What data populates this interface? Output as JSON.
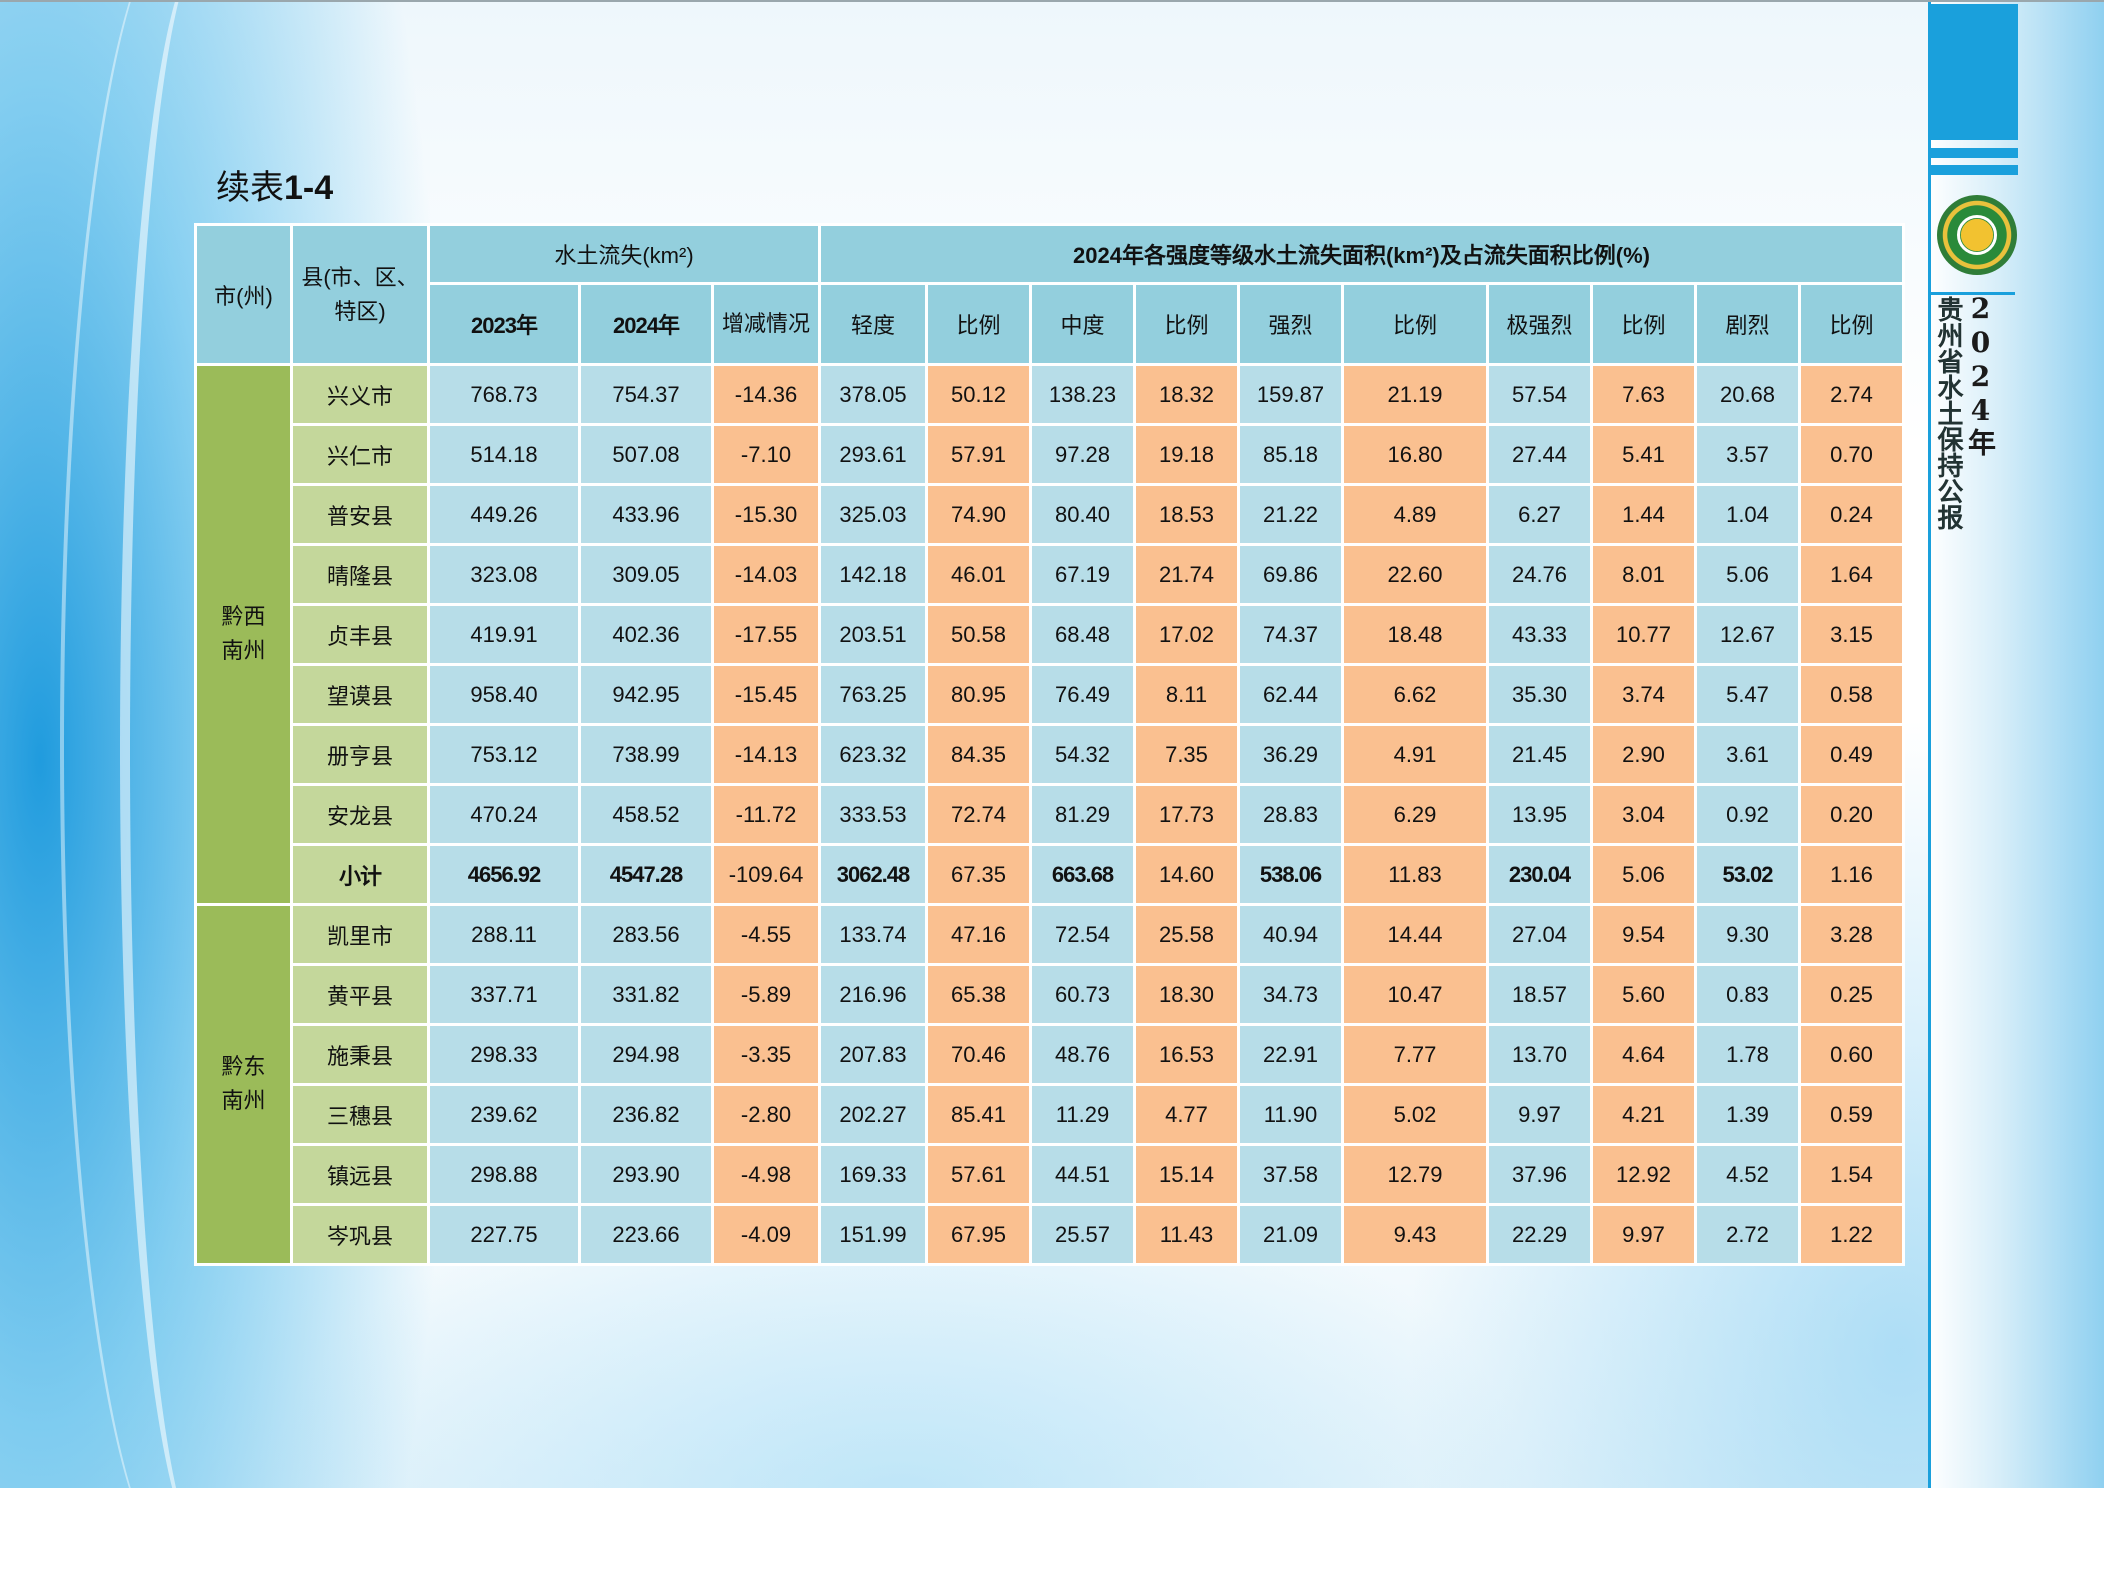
{
  "title": {
    "prefix": "续表",
    "number": "1-4"
  },
  "sidebar": {
    "year": "2024年",
    "subtitle": "贵州省水土保持公报"
  },
  "header": {
    "city": "市(州)",
    "county": "县(市、区、特区)",
    "soil_loss_group": "水土流失(km²)",
    "intensity_group": "2024年各强度等级水土流失面积(km²)及占流失面积比例(%)",
    "y2023": "2023年",
    "y2024": "2024年",
    "change": "增减情况",
    "light": "轻度",
    "moderate": "中度",
    "intense": "强烈",
    "very_intense": "极强烈",
    "severe": "剧烈",
    "ratio": "比例"
  },
  "groups": [
    {
      "city": "黔西南州",
      "rows": [
        {
          "name": "兴义市",
          "v": [
            "768.73",
            "754.37",
            "-14.36",
            "378.05",
            "50.12",
            "138.23",
            "18.32",
            "159.87",
            "21.19",
            "57.54",
            "7.63",
            "20.68",
            "2.74"
          ]
        },
        {
          "name": "兴仁市",
          "v": [
            "514.18",
            "507.08",
            "-7.10",
            "293.61",
            "57.91",
            "97.28",
            "19.18",
            "85.18",
            "16.80",
            "27.44",
            "5.41",
            "3.57",
            "0.70"
          ]
        },
        {
          "name": "普安县",
          "v": [
            "449.26",
            "433.96",
            "-15.30",
            "325.03",
            "74.90",
            "80.40",
            "18.53",
            "21.22",
            "4.89",
            "6.27",
            "1.44",
            "1.04",
            "0.24"
          ]
        },
        {
          "name": "晴隆县",
          "v": [
            "323.08",
            "309.05",
            "-14.03",
            "142.18",
            "46.01",
            "67.19",
            "21.74",
            "69.86",
            "22.60",
            "24.76",
            "8.01",
            "5.06",
            "1.64"
          ]
        },
        {
          "name": "贞丰县",
          "v": [
            "419.91",
            "402.36",
            "-17.55",
            "203.51",
            "50.58",
            "68.48",
            "17.02",
            "74.37",
            "18.48",
            "43.33",
            "10.77",
            "12.67",
            "3.15"
          ]
        },
        {
          "name": "望谟县",
          "v": [
            "958.40",
            "942.95",
            "-15.45",
            "763.25",
            "80.95",
            "76.49",
            "8.11",
            "62.44",
            "6.62",
            "35.30",
            "3.74",
            "5.47",
            "0.58"
          ]
        },
        {
          "name": "册亨县",
          "v": [
            "753.12",
            "738.99",
            "-14.13",
            "623.32",
            "84.35",
            "54.32",
            "7.35",
            "36.29",
            "4.91",
            "21.45",
            "2.90",
            "3.61",
            "0.49"
          ]
        },
        {
          "name": "安龙县",
          "v": [
            "470.24",
            "458.52",
            "-11.72",
            "333.53",
            "72.74",
            "81.29",
            "17.73",
            "28.83",
            "6.29",
            "13.95",
            "3.04",
            "0.92",
            "0.20"
          ]
        },
        {
          "name": "小计",
          "subtotal": true,
          "v": [
            "4656.92",
            "4547.28",
            "-109.64",
            "3062.48",
            "67.35",
            "663.68",
            "14.60",
            "538.06",
            "11.83",
            "230.04",
            "5.06",
            "53.02",
            "1.16"
          ]
        }
      ]
    },
    {
      "city": "黔东南州",
      "rows": [
        {
          "name": "凯里市",
          "v": [
            "288.11",
            "283.56",
            "-4.55",
            "133.74",
            "47.16",
            "72.54",
            "25.58",
            "40.94",
            "14.44",
            "27.04",
            "9.54",
            "9.30",
            "3.28"
          ]
        },
        {
          "name": "黄平县",
          "v": [
            "337.71",
            "331.82",
            "-5.89",
            "216.96",
            "65.38",
            "60.73",
            "18.30",
            "34.73",
            "10.47",
            "18.57",
            "5.60",
            "0.83",
            "0.25"
          ]
        },
        {
          "name": "施秉县",
          "v": [
            "298.33",
            "294.98",
            "-3.35",
            "207.83",
            "70.46",
            "48.76",
            "16.53",
            "22.91",
            "7.77",
            "13.70",
            "4.64",
            "1.78",
            "0.60"
          ]
        },
        {
          "name": "三穗县",
          "v": [
            "239.62",
            "236.82",
            "-2.80",
            "202.27",
            "85.41",
            "11.29",
            "4.77",
            "11.90",
            "5.02",
            "9.97",
            "4.21",
            "1.39",
            "0.59"
          ]
        },
        {
          "name": "镇远县",
          "v": [
            "298.88",
            "293.90",
            "-4.98",
            "169.33",
            "57.61",
            "44.51",
            "15.14",
            "37.58",
            "12.79",
            "37.96",
            "12.92",
            "4.52",
            "1.54"
          ]
        },
        {
          "name": "岑巩县",
          "v": [
            "227.75",
            "223.66",
            "-4.09",
            "151.99",
            "67.95",
            "25.57",
            "11.43",
            "21.09",
            "9.43",
            "22.29",
            "9.97",
            "2.72",
            "1.22"
          ]
        }
      ]
    }
  ]
}
